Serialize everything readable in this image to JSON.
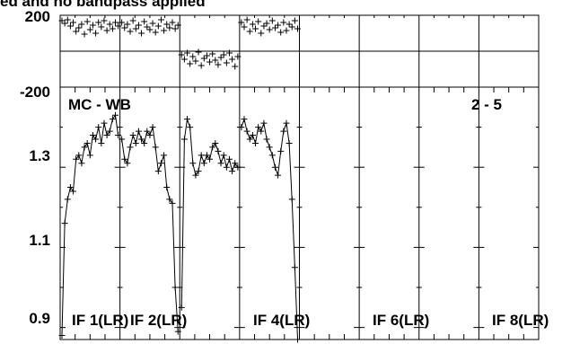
{
  "chart_data": {
    "type": "line",
    "title": "ed and no bandpass applied",
    "phase_panel": {
      "tick_labels": [
        "200",
        "-200"
      ],
      "ylim": [
        -200,
        200
      ]
    },
    "amp_panel": {
      "baseline_label": "MC - WB",
      "stokes_label": "2 - 5",
      "tick_labels": [
        "1.3",
        "1.1",
        "0.9"
      ],
      "ylim": [
        0.87,
        1.5
      ]
    },
    "if_labels": [
      "IF 1(LR)",
      "IF 2(LR)",
      "IF 4(LR)",
      "IF 6(LR)",
      "IF 8(LR)"
    ],
    "series": [
      {
        "if_index": 0,
        "amp": [
          0.88,
          1.16,
          1.22,
          1.25,
          1.24,
          1.32,
          1.33,
          1.31,
          1.35,
          1.36,
          1.33,
          1.38,
          1.37,
          1.4,
          1.36,
          1.41,
          1.38,
          1.39,
          1.42,
          1.43,
          1.38
        ],
        "phase": [
          170,
          155,
          175,
          140,
          160,
          110,
          130,
          150,
          95,
          165,
          120,
          145,
          100,
          160,
          135,
          170,
          115,
          150,
          125,
          160,
          140
        ]
      },
      {
        "if_index": 1,
        "amp": [
          1.37,
          1.32,
          1.31,
          1.35,
          1.38,
          1.36,
          1.39,
          1.37,
          1.36,
          1.39,
          1.38,
          1.4,
          1.35,
          1.29,
          1.31,
          1.33,
          1.25,
          1.22,
          1.21,
          1.0,
          0.89
        ],
        "phase": [
          160,
          130,
          150,
          110,
          170,
          125,
          145,
          100,
          165,
          135,
          120,
          155,
          105,
          140,
          175,
          115,
          150,
          130,
          160,
          125,
          145
        ]
      },
      {
        "if_index": 2,
        "amp": [
          0.95,
          1.37,
          1.42,
          1.4,
          1.31,
          1.28,
          1.29,
          1.33,
          1.31,
          1.33,
          1.32,
          1.35,
          1.36,
          1.34,
          1.31,
          1.33,
          1.3,
          1.32,
          1.29,
          1.31,
          1.3
        ],
        "phase": [
          -20,
          -45,
          -10,
          -70,
          -30,
          -55,
          -5,
          -80,
          -40,
          -25,
          -60,
          -15,
          -50,
          -75,
          -35,
          -20,
          -65,
          -10,
          -45,
          -85,
          -30
        ]
      },
      {
        "if_index": 3,
        "amp": [
          1.4,
          1.42,
          1.39,
          1.37,
          1.38,
          1.36,
          1.4,
          1.39,
          1.41,
          1.37,
          1.35,
          1.33,
          1.3,
          1.28,
          1.34,
          1.39,
          1.41,
          1.36,
          1.22,
          1.05,
          0.87
        ],
        "phase": [
          160,
          135,
          175,
          110,
          150,
          125,
          165,
          100,
          140,
          155,
          120,
          170,
          130,
          145,
          105,
          160,
          115,
          150,
          135,
          170,
          125
        ]
      }
    ]
  }
}
